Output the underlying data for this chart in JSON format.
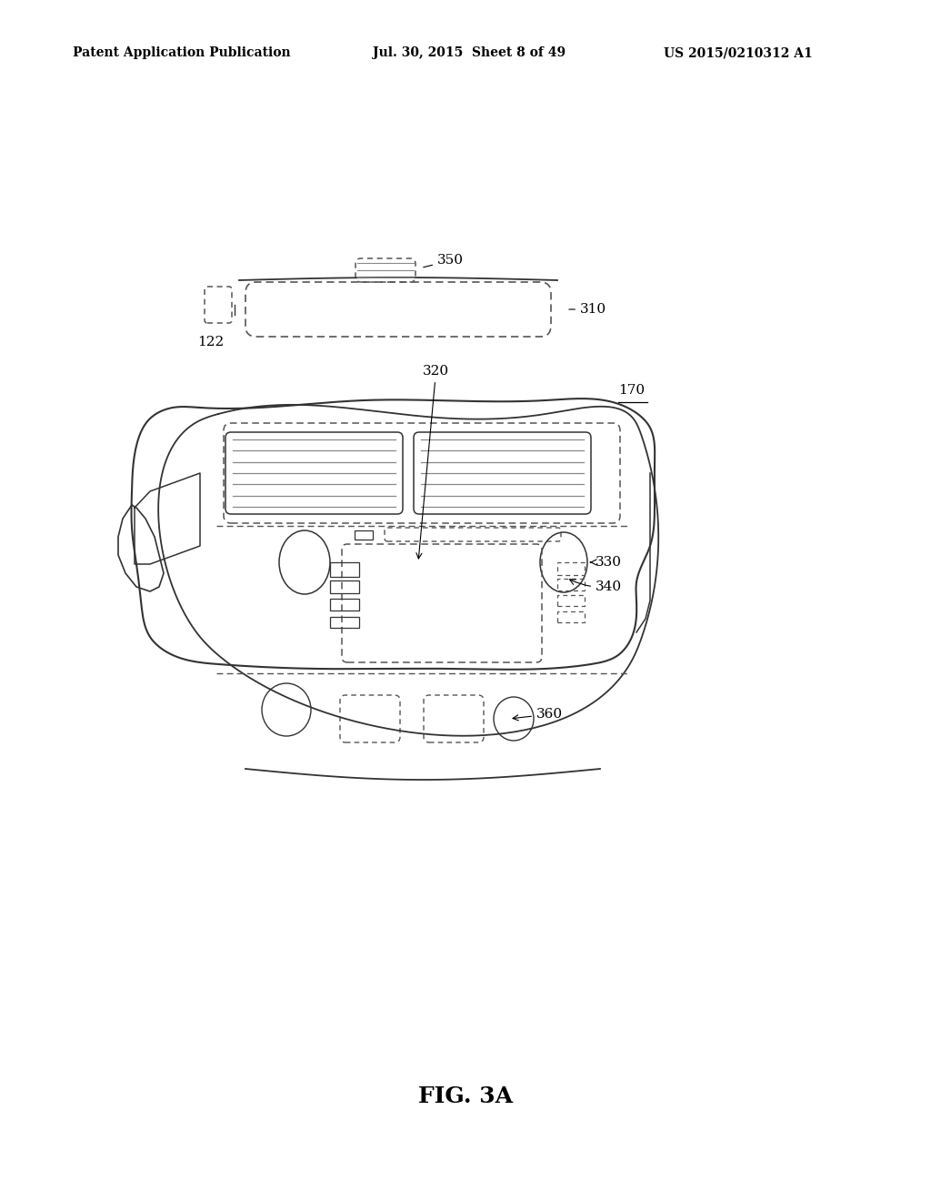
{
  "bg_color": "#ffffff",
  "line_color": "#333333",
  "dash_color": "#555555",
  "header_left": "Patent Application Publication",
  "header_mid": "Jul. 30, 2015  Sheet 8 of 49",
  "header_right": "US 2015/0210312 A1",
  "caption": "FIG. 3A",
  "fig_width": 1024,
  "fig_height": 1320
}
